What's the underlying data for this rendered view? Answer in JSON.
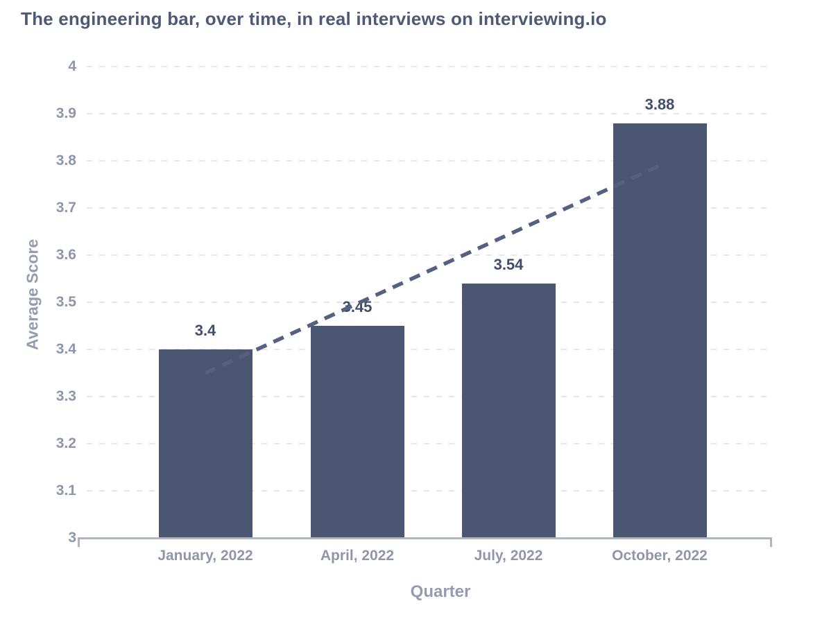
{
  "chart_data": {
    "type": "bar",
    "title": "The engineering bar, over time, in real interviews on interviewing.io",
    "xlabel": "Quarter",
    "ylabel": "Average Score",
    "categories": [
      "January, 2022",
      "April, 2022",
      "July, 2022",
      "October, 2022"
    ],
    "values": [
      3.4,
      3.45,
      3.54,
      3.88
    ],
    "value_labels": [
      "3.4",
      "3.45",
      "3.54",
      "3.88"
    ],
    "ylim": [
      3,
      4
    ],
    "yticks": [
      4,
      3.9,
      3.8,
      3.7,
      3.6,
      3.5,
      3.4,
      3.3,
      3.2,
      3.1,
      3
    ],
    "ytick_labels": [
      "4",
      "3.9",
      "3.8",
      "3.7",
      "3.6",
      "3.5",
      "3.4",
      "3.3",
      "3.2",
      "3.1",
      "3"
    ],
    "grid": "horizontal-dashed",
    "legend": "none",
    "trendline": {
      "style": "dashed",
      "from": {
        "category_index": 0,
        "value": 3.35
      },
      "to": {
        "category_index": 3,
        "value": 3.79
      }
    },
    "colors": {
      "bar": "#4a5672",
      "trendline": "#556180",
      "title": "#4d5a77",
      "tick_label": "#8e96ab",
      "axis_title": "#949cb0",
      "value_label": "#404d6b",
      "gridline": "#e4e6ea",
      "axis_line": "#aeb4c0"
    }
  }
}
